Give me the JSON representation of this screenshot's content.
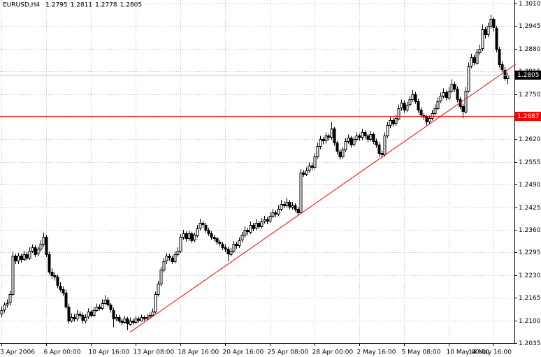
{
  "chart_data": {
    "type": "candlestick",
    "symbol": "EURUSD,H4",
    "ylim": [
      1.2035,
      1.301
    ],
    "yticks": [
      {
        "value": 1.301,
        "label": "1.3010"
      },
      1.2945,
      {
        "value": 1.288,
        "label": "1.2880"
      },
      1.2815,
      {
        "value": 1.275,
        "label": "1.2750"
      },
      1.2685,
      {
        "value": 1.262,
        "label": "1.2620"
      },
      1.2555,
      {
        "value": 1.249,
        "label": "1.2490"
      },
      1.2425,
      {
        "value": 1.236,
        "label": "1.2360"
      },
      1.2295,
      {
        "value": 1.223,
        "label": "1.2230"
      },
      1.2165,
      {
        "value": 1.21,
        "label": "1.2100"
      },
      1.2035
    ],
    "xticks": [
      {
        "value": 0,
        "label": "3 Apr 2006"
      },
      {
        "value": 16,
        "label": "6 Apr 00:00"
      },
      {
        "value": 32,
        "label": "10 Apr 16:00"
      },
      {
        "value": 48,
        "label": "13 Apr 08:00"
      },
      {
        "value": 64,
        "label": "18 Apr 16:00"
      },
      {
        "value": 80,
        "label": "20 Apr 16:00"
      },
      {
        "value": 96,
        "label": "25 Apr 08:00"
      },
      {
        "value": 112,
        "label": "28 Apr 00:00"
      },
      {
        "value": 128,
        "label": "2 May 16:00"
      },
      {
        "value": 144,
        "label": "5 May 08:00"
      },
      {
        "value": 160,
        "label": "10 May 00:00"
      },
      {
        "value": 176,
        "label": "14 May 16:00"
      }
    ],
    "grid": true,
    "hline": {
      "value": 1.2687,
      "color": "#ff0000"
    },
    "trendline": {
      "x": [
        46,
        184
      ],
      "y": [
        1.2066,
        1.2836
      ],
      "color": "#ff0000"
    },
    "candles": [
      [
        1.212,
        1.214,
        1.2108,
        1.213
      ],
      [
        1.213,
        1.2152,
        1.2122,
        1.2145
      ],
      [
        1.2145,
        1.216,
        1.2136,
        1.215
      ],
      [
        1.215,
        1.2185,
        1.2142,
        1.2175
      ],
      [
        1.2175,
        1.2298,
        1.217,
        1.2285
      ],
      [
        1.2285,
        1.2292,
        1.2262,
        1.227
      ],
      [
        1.227,
        1.2294,
        1.2262,
        1.2285
      ],
      [
        1.2285,
        1.2292,
        1.2266,
        1.2275
      ],
      [
        1.2275,
        1.23,
        1.227,
        1.229
      ],
      [
        1.229,
        1.2296,
        1.2272,
        1.228
      ],
      [
        1.228,
        1.231,
        1.2274,
        1.23
      ],
      [
        1.23,
        1.2318,
        1.2294,
        1.231
      ],
      [
        1.231,
        1.2316,
        1.2282,
        1.229
      ],
      [
        1.229,
        1.2312,
        1.2284,
        1.2305
      ],
      [
        1.2305,
        1.233,
        1.2298,
        1.232
      ],
      [
        1.232,
        1.2352,
        1.2312,
        1.234
      ],
      [
        1.234,
        1.2346,
        1.2282,
        1.229
      ],
      [
        1.229,
        1.2298,
        1.2232,
        1.224
      ],
      [
        1.224,
        1.225,
        1.222,
        1.223
      ],
      [
        1.223,
        1.2238,
        1.2215,
        1.2225
      ],
      [
        1.2225,
        1.2232,
        1.2192,
        1.22
      ],
      [
        1.22,
        1.221,
        1.2182,
        1.219
      ],
      [
        1.219,
        1.2198,
        1.217,
        1.218
      ],
      [
        1.218,
        1.2188,
        1.2132,
        1.214
      ],
      [
        1.214,
        1.2148,
        1.209,
        1.21
      ],
      [
        1.21,
        1.212,
        1.2094,
        1.211
      ],
      [
        1.211,
        1.2118,
        1.2096,
        1.2105
      ],
      [
        1.2105,
        1.213,
        1.2098,
        1.212
      ],
      [
        1.212,
        1.2126,
        1.2106,
        1.2115
      ],
      [
        1.2115,
        1.2122,
        1.209,
        1.21
      ],
      [
        1.21,
        1.2118,
        1.2092,
        1.211
      ],
      [
        1.211,
        1.2134,
        1.2104,
        1.2125
      ],
      [
        1.2125,
        1.213,
        1.2108,
        1.2115
      ],
      [
        1.2115,
        1.2138,
        1.211,
        1.213
      ],
      [
        1.213,
        1.2148,
        1.2124,
        1.214
      ],
      [
        1.214,
        1.2146,
        1.2128,
        1.2135
      ],
      [
        1.2135,
        1.216,
        1.213,
        1.215
      ],
      [
        1.215,
        1.2172,
        1.2144,
        1.216
      ],
      [
        1.216,
        1.2166,
        1.2138,
        1.2145
      ],
      [
        1.2145,
        1.215,
        1.2122,
        1.213
      ],
      [
        1.213,
        1.2136,
        1.208,
        1.2105
      ],
      [
        1.2105,
        1.2118,
        1.2098,
        1.211
      ],
      [
        1.211,
        1.2116,
        1.2092,
        1.21
      ],
      [
        1.21,
        1.2106,
        1.2086,
        1.2095
      ],
      [
        1.2095,
        1.2112,
        1.209,
        1.2105
      ],
      [
        1.2105,
        1.211,
        1.2072,
        1.209
      ],
      [
        1.209,
        1.2108,
        1.2084,
        1.21
      ],
      [
        1.21,
        1.2106,
        1.2088,
        1.2095
      ],
      [
        1.2095,
        1.2112,
        1.209,
        1.2105
      ],
      [
        1.2105,
        1.211,
        1.2094,
        1.21
      ],
      [
        1.21,
        1.2116,
        1.2096,
        1.211
      ],
      [
        1.211,
        1.2114,
        1.2098,
        1.2105
      ],
      [
        1.2105,
        1.2118,
        1.21,
        1.211
      ],
      [
        1.211,
        1.2122,
        1.2104,
        1.2115
      ],
      [
        1.2115,
        1.2134,
        1.211,
        1.2125
      ],
      [
        1.2125,
        1.2182,
        1.212,
        1.2175
      ],
      [
        1.2175,
        1.2214,
        1.2168,
        1.2205
      ],
      [
        1.2205,
        1.2254,
        1.2198,
        1.2245
      ],
      [
        1.2245,
        1.228,
        1.2238,
        1.227
      ],
      [
        1.227,
        1.2294,
        1.2262,
        1.2285
      ],
      [
        1.2285,
        1.2292,
        1.2272,
        1.228
      ],
      [
        1.228,
        1.2286,
        1.2262,
        1.227
      ],
      [
        1.227,
        1.2298,
        1.2264,
        1.229
      ],
      [
        1.229,
        1.231,
        1.2284,
        1.23
      ],
      [
        1.23,
        1.2348,
        1.2294,
        1.234
      ],
      [
        1.234,
        1.236,
        1.2332,
        1.235
      ],
      [
        1.235,
        1.2356,
        1.2326,
        1.2335
      ],
      [
        1.2335,
        1.2358,
        1.2328,
        1.235
      ],
      [
        1.235,
        1.2355,
        1.2322,
        1.233
      ],
      [
        1.233,
        1.2352,
        1.2324,
        1.2345
      ],
      [
        1.2345,
        1.2374,
        1.2338,
        1.2365
      ],
      [
        1.2365,
        1.2392,
        1.2358,
        1.238
      ],
      [
        1.238,
        1.2386,
        1.2366,
        1.2375
      ],
      [
        1.2375,
        1.238,
        1.2352,
        1.236
      ],
      [
        1.236,
        1.2366,
        1.2342,
        1.235
      ],
      [
        1.235,
        1.2356,
        1.2332,
        1.234
      ],
      [
        1.234,
        1.2346,
        1.2328,
        1.2335
      ],
      [
        1.2335,
        1.234,
        1.2316,
        1.2325
      ],
      [
        1.2325,
        1.2332,
        1.2312,
        1.232
      ],
      [
        1.232,
        1.2326,
        1.2302,
        1.231
      ],
      [
        1.231,
        1.2318,
        1.2296,
        1.2305
      ],
      [
        1.2305,
        1.2312,
        1.227,
        1.229
      ],
      [
        1.229,
        1.2308,
        1.2284,
        1.23
      ],
      [
        1.23,
        1.2328,
        1.2294,
        1.232
      ],
      [
        1.232,
        1.2326,
        1.2306,
        1.2315
      ],
      [
        1.2315,
        1.2338,
        1.2308,
        1.233
      ],
      [
        1.233,
        1.2354,
        1.2324,
        1.2345
      ],
      [
        1.2345,
        1.237,
        1.2338,
        1.236
      ],
      [
        1.236,
        1.2366,
        1.2346,
        1.2355
      ],
      [
        1.2355,
        1.2384,
        1.2348,
        1.2375
      ],
      [
        1.2375,
        1.238,
        1.2356,
        1.2365
      ],
      [
        1.2365,
        1.239,
        1.2358,
        1.238
      ],
      [
        1.238,
        1.2386,
        1.2362,
        1.237
      ],
      [
        1.237,
        1.2394,
        1.2364,
        1.2385
      ],
      [
        1.2385,
        1.24,
        1.2378,
        1.239
      ],
      [
        1.239,
        1.2396,
        1.2376,
        1.2385
      ],
      [
        1.2385,
        1.241,
        1.238,
        1.24
      ],
      [
        1.24,
        1.242,
        1.2394,
        1.241
      ],
      [
        1.241,
        1.2416,
        1.2396,
        1.2405
      ],
      [
        1.2405,
        1.243,
        1.24,
        1.242
      ],
      [
        1.242,
        1.2446,
        1.2414,
        1.2435
      ],
      [
        1.2435,
        1.2442,
        1.2422,
        1.243
      ],
      [
        1.243,
        1.2452,
        1.2424,
        1.244
      ],
      [
        1.244,
        1.2446,
        1.2418,
        1.2425
      ],
      [
        1.2425,
        1.244,
        1.2418,
        1.243
      ],
      [
        1.243,
        1.2436,
        1.2412,
        1.242
      ],
      [
        1.242,
        1.2426,
        1.2402,
        1.241
      ],
      [
        1.241,
        1.2534,
        1.2406,
        1.2525
      ],
      [
        1.2525,
        1.2532,
        1.2512,
        1.252
      ],
      [
        1.252,
        1.254,
        1.2514,
        1.253
      ],
      [
        1.253,
        1.2554,
        1.2524,
        1.2545
      ],
      [
        1.2545,
        1.2552,
        1.2532,
        1.254
      ],
      [
        1.254,
        1.258,
        1.2534,
        1.257
      ],
      [
        1.257,
        1.261,
        1.2564,
        1.26
      ],
      [
        1.26,
        1.263,
        1.2592,
        1.262
      ],
      [
        1.262,
        1.2626,
        1.2606,
        1.2615
      ],
      [
        1.2615,
        1.264,
        1.2608,
        1.263
      ],
      [
        1.263,
        1.2636,
        1.2616,
        1.2625
      ],
      [
        1.2625,
        1.267,
        1.2618,
        1.265
      ],
      [
        1.265,
        1.2656,
        1.2602,
        1.261
      ],
      [
        1.261,
        1.2616,
        1.2576,
        1.2585
      ],
      [
        1.2585,
        1.2592,
        1.2562,
        1.257
      ],
      [
        1.257,
        1.2598,
        1.2564,
        1.259
      ],
      [
        1.259,
        1.2624,
        1.2584,
        1.2615
      ],
      [
        1.2615,
        1.2634,
        1.2608,
        1.2625
      ],
      [
        1.2625,
        1.263,
        1.2596,
        1.2605
      ],
      [
        1.2605,
        1.2628,
        1.26,
        1.262
      ],
      [
        1.262,
        1.264,
        1.2614,
        1.263
      ],
      [
        1.263,
        1.2636,
        1.2616,
        1.2625
      ],
      [
        1.2625,
        1.265,
        1.2618,
        1.264
      ],
      [
        1.264,
        1.2646,
        1.2622,
        1.263
      ],
      [
        1.263,
        1.2636,
        1.2612,
        1.262
      ],
      [
        1.262,
        1.2644,
        1.2614,
        1.2635
      ],
      [
        1.2635,
        1.264,
        1.2606,
        1.2615
      ],
      [
        1.2615,
        1.2622,
        1.2596,
        1.2605
      ],
      [
        1.2605,
        1.2612,
        1.257,
        1.258
      ],
      [
        1.258,
        1.2588,
        1.2566,
        1.2575
      ],
      [
        1.2575,
        1.264,
        1.257,
        1.263
      ],
      [
        1.263,
        1.267,
        1.2624,
        1.266
      ],
      [
        1.266,
        1.2684,
        1.2652,
        1.2675
      ],
      [
        1.2675,
        1.2682,
        1.2656,
        1.2665
      ],
      [
        1.2665,
        1.269,
        1.2658,
        1.268
      ],
      [
        1.268,
        1.272,
        1.2674,
        1.271
      ],
      [
        1.271,
        1.2734,
        1.2702,
        1.2725
      ],
      [
        1.2725,
        1.2732,
        1.2696,
        1.2705
      ],
      [
        1.2705,
        1.2728,
        1.2698,
        1.272
      ],
      [
        1.272,
        1.2744,
        1.2714,
        1.2735
      ],
      [
        1.2735,
        1.2762,
        1.2728,
        1.275
      ],
      [
        1.275,
        1.2756,
        1.2722,
        1.273
      ],
      [
        1.273,
        1.2736,
        1.2696,
        1.2705
      ],
      [
        1.2705,
        1.2712,
        1.2682,
        1.269
      ],
      [
        1.269,
        1.2696,
        1.2676,
        1.2685
      ],
      [
        1.2685,
        1.269,
        1.266,
        1.267
      ],
      [
        1.267,
        1.2688,
        1.2664,
        1.268
      ],
      [
        1.268,
        1.2704,
        1.2674,
        1.2695
      ],
      [
        1.2695,
        1.272,
        1.2688,
        1.271
      ],
      [
        1.271,
        1.274,
        1.2704,
        1.273
      ],
      [
        1.273,
        1.2754,
        1.2724,
        1.2745
      ],
      [
        1.2745,
        1.2766,
        1.2738,
        1.2755
      ],
      [
        1.2755,
        1.276,
        1.2732,
        1.274
      ],
      [
        1.274,
        1.277,
        1.2734,
        1.276
      ],
      [
        1.276,
        1.2792,
        1.2754,
        1.278
      ],
      [
        1.278,
        1.2786,
        1.2756,
        1.2765
      ],
      [
        1.2765,
        1.2772,
        1.2726,
        1.2735
      ],
      [
        1.2735,
        1.2742,
        1.2706,
        1.2715
      ],
      [
        1.2715,
        1.2722,
        1.268,
        1.27
      ],
      [
        1.27,
        1.277,
        1.2694,
        1.276
      ],
      [
        1.276,
        1.284,
        1.2754,
        1.283
      ],
      [
        1.283,
        1.2866,
        1.2824,
        1.2855
      ],
      [
        1.2855,
        1.2862,
        1.2832,
        1.284
      ],
      [
        1.284,
        1.288,
        1.2834,
        1.287
      ],
      [
        1.287,
        1.2892,
        1.2862,
        1.288
      ],
      [
        1.288,
        1.295,
        1.2874,
        1.2935
      ],
      [
        1.2935,
        1.2942,
        1.291,
        1.292
      ],
      [
        1.292,
        1.2955,
        1.2914,
        1.2945
      ],
      [
        1.2945,
        1.2978,
        1.2938,
        1.2965
      ],
      [
        1.2965,
        1.2972,
        1.293,
        1.294
      ],
      [
        1.294,
        1.2946,
        1.287,
        1.288
      ],
      [
        1.288,
        1.2886,
        1.2826,
        1.2835
      ],
      [
        1.2835,
        1.2844,
        1.2812,
        1.282
      ],
      [
        1.282,
        1.2828,
        1.2788,
        1.2795
      ],
      [
        1.2795,
        1.2811,
        1.2778,
        1.2805
      ]
    ]
  }
}
